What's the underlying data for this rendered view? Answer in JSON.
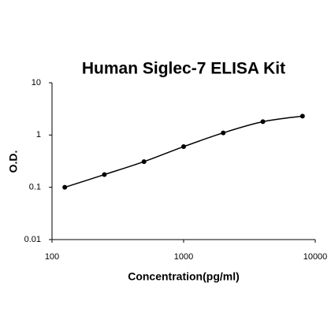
{
  "chart_data": {
    "type": "line",
    "title": "Human Siglec-7 ELISA Kit",
    "x_label": "Concentration(pg/ml)",
    "y_label": "O.D.",
    "x": [
      125,
      250,
      500,
      1000,
      2000,
      4000,
      8000
    ],
    "values": [
      0.1,
      0.175,
      0.31,
      0.6,
      1.1,
      1.8,
      2.3
    ],
    "color": "#000000",
    "markers": true,
    "smooth": true,
    "xscale": "log",
    "yscale": "log",
    "xlim": [
      100,
      10000
    ],
    "xticks": [
      100,
      1000,
      10000
    ],
    "ylim": [
      0.01,
      10
    ],
    "yticks": [
      0.01,
      0.1,
      1,
      10
    ],
    "grid": false
  }
}
